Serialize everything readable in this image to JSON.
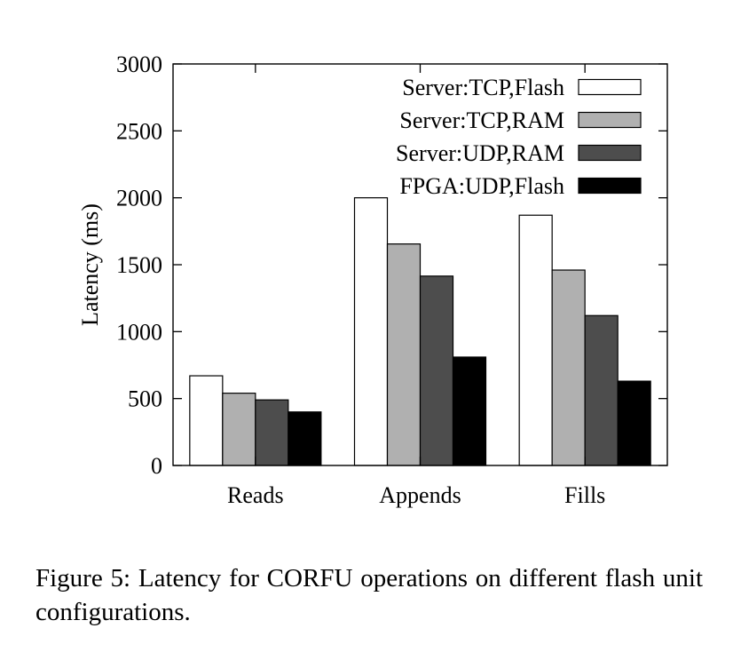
{
  "chart_data": {
    "type": "bar",
    "title": "",
    "xlabel": "",
    "ylabel": "Latency (ms)",
    "ylim": [
      0,
      3000
    ],
    "yticks": [
      0,
      500,
      1000,
      1500,
      2000,
      2500,
      3000
    ],
    "categories": [
      "Reads",
      "Appends",
      "Fills"
    ],
    "series": [
      {
        "name": "Server:TCP,Flash",
        "color": "#ffffff",
        "values": [
          670,
          2000,
          1870
        ]
      },
      {
        "name": "Server:TCP,RAM",
        "color": "#b0b0b0",
        "values": [
          540,
          1655,
          1460
        ]
      },
      {
        "name": "Server:UDP,RAM",
        "color": "#4d4d4d",
        "values": [
          490,
          1415,
          1120
        ]
      },
      {
        "name": "FPGA:UDP,Flash",
        "color": "#000000",
        "values": [
          400,
          810,
          630
        ]
      }
    ],
    "legend_position": "top-right",
    "grid": false
  },
  "caption": "Figure 5: Latency for CORFU operations on different flash unit configurations."
}
